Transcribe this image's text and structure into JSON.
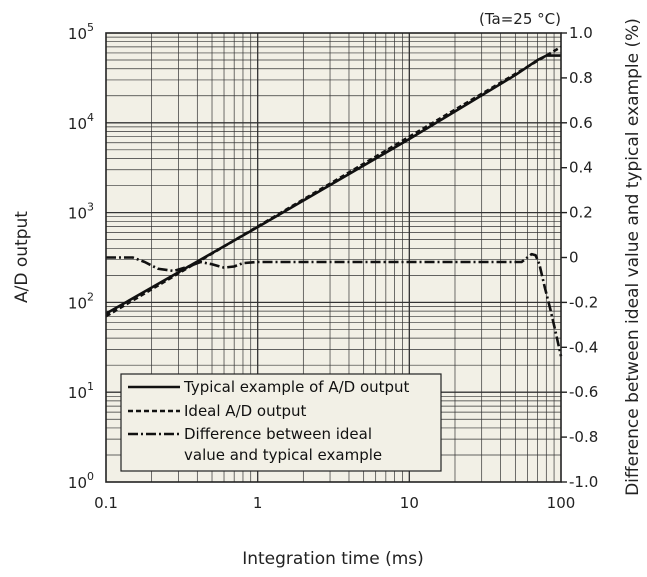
{
  "chart_data": {
    "type": "line",
    "annotation": "(Ta=25 °C)",
    "xlabel": "Integration time (ms)",
    "ylabel": "A/D output",
    "y2label": "Difference between ideal value and typical example (%)",
    "x_scale": "log",
    "y_scale": "log",
    "xlim": [
      0.1,
      100
    ],
    "ylim": [
      1,
      100000
    ],
    "y2lim": [
      -1.0,
      1.0
    ],
    "grid": true,
    "background": "#f2f0e6",
    "x_ticks": [
      {
        "value": 0.1,
        "label": "0.1"
      },
      {
        "value": 1,
        "label": "1"
      },
      {
        "value": 10,
        "label": "10"
      },
      {
        "value": 100,
        "label": "100"
      }
    ],
    "y_ticks": [
      {
        "value": 1,
        "base": "10",
        "exp": "0"
      },
      {
        "value": 10,
        "base": "10",
        "exp": "1"
      },
      {
        "value": 100,
        "base": "10",
        "exp": "2"
      },
      {
        "value": 1000,
        "base": "10",
        "exp": "3"
      },
      {
        "value": 10000,
        "base": "10",
        "exp": "4"
      },
      {
        "value": 100000,
        "base": "10",
        "exp": "5"
      }
    ],
    "y2_ticks": [
      {
        "value": 1.0,
        "label": "1.0"
      },
      {
        "value": 0.8,
        "label": "0.8"
      },
      {
        "value": 0.6,
        "label": "0.6"
      },
      {
        "value": 0.4,
        "label": "0.4"
      },
      {
        "value": 0.2,
        "label": "0.2"
      },
      {
        "value": 0,
        "label": "0"
      },
      {
        "value": -0.2,
        "label": "-0.2"
      },
      {
        "value": -0.4,
        "label": "-0.4"
      },
      {
        "value": -0.6,
        "label": "-0.6"
      },
      {
        "value": -0.8,
        "label": "-0.8"
      },
      {
        "value": -1.0,
        "label": "-1.0"
      }
    ],
    "series": [
      {
        "name": "Typical example of A/D output",
        "style": "solid",
        "axis": "left",
        "points": [
          [
            0.1,
            75
          ],
          [
            1,
            690
          ],
          [
            10,
            6600
          ],
          [
            50,
            34000
          ],
          [
            70,
            50000
          ],
          [
            80,
            56000
          ],
          [
            100,
            56000
          ]
        ]
      },
      {
        "name": "Ideal A/D output",
        "style": "dashed",
        "axis": "left",
        "points": [
          [
            0.1,
            70
          ],
          [
            1,
            700
          ],
          [
            10,
            7000
          ],
          [
            90,
            63000
          ],
          [
            100,
            70000
          ]
        ]
      },
      {
        "name": "Difference between ideal value and typical example",
        "style": "dashdot",
        "axis": "right",
        "points": [
          [
            0.1,
            0.0
          ],
          [
            0.15,
            0.0
          ],
          [
            0.18,
            -0.02
          ],
          [
            0.22,
            -0.05
          ],
          [
            0.28,
            -0.06
          ],
          [
            0.35,
            -0.04
          ],
          [
            0.42,
            -0.02
          ],
          [
            0.5,
            -0.03
          ],
          [
            0.6,
            -0.045
          ],
          [
            0.7,
            -0.04
          ],
          [
            0.8,
            -0.025
          ],
          [
            1,
            -0.02
          ],
          [
            2,
            -0.02
          ],
          [
            5,
            -0.02
          ],
          [
            10,
            -0.02
          ],
          [
            30,
            -0.02
          ],
          [
            50,
            -0.02
          ],
          [
            55,
            -0.02
          ],
          [
            60,
            0.0
          ],
          [
            64,
            0.015
          ],
          [
            68,
            0.01
          ],
          [
            72,
            -0.03
          ],
          [
            78,
            -0.13
          ],
          [
            85,
            -0.23
          ],
          [
            92,
            -0.33
          ],
          [
            100,
            -0.44
          ]
        ]
      }
    ],
    "legend": {
      "position": "bottom-left",
      "items": [
        {
          "style": "solid",
          "label": "Typical example of A/D output"
        },
        {
          "style": "dashed",
          "label": "Ideal A/D output"
        },
        {
          "style": "dashdot",
          "label": "Difference between ideal",
          "label2": "value and typical example"
        }
      ]
    }
  }
}
